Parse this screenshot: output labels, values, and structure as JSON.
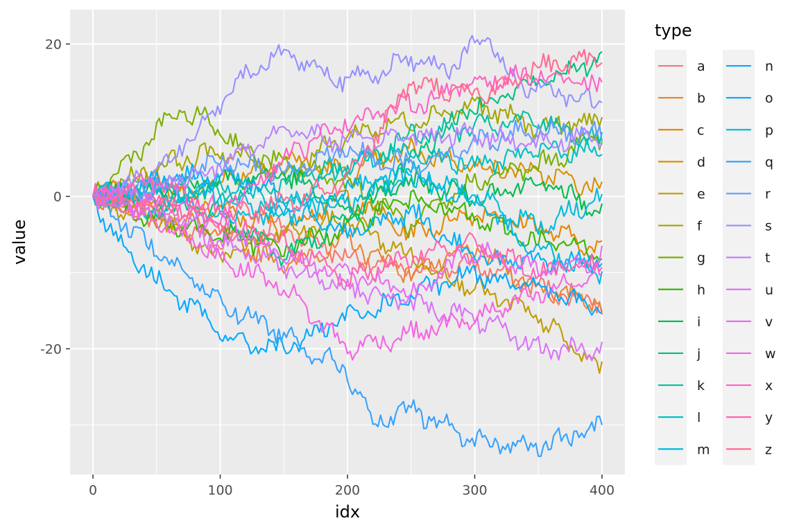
{
  "chart_data": {
    "type": "line",
    "xlabel": "idx",
    "ylabel": "value",
    "xlim": [
      -18,
      418
    ],
    "ylim": [
      -36.5,
      24.5
    ],
    "xticks": [
      0,
      100,
      200,
      300,
      400
    ],
    "xtick_labels": [
      "0",
      "100",
      "200",
      "300",
      "400"
    ],
    "yticks": [
      -20,
      0,
      20
    ],
    "ytick_labels": [
      "-20",
      "0",
      "20"
    ],
    "grid": true,
    "legend": {
      "title": "type",
      "placement": "right",
      "columns": 2
    },
    "series": [
      {
        "name": "a",
        "color": "#F8766D",
        "points": [
          [
            0,
            0
          ],
          [
            50,
            -3
          ],
          [
            100,
            -6
          ],
          [
            150,
            -4
          ],
          [
            200,
            -8
          ],
          [
            250,
            -10
          ],
          [
            300,
            -9
          ],
          [
            350,
            -12
          ],
          [
            400,
            -14
          ]
        ]
      },
      {
        "name": "b",
        "color": "#EA8331",
        "points": [
          [
            0,
            0
          ],
          [
            50,
            -2
          ],
          [
            100,
            -5
          ],
          [
            150,
            -9
          ],
          [
            200,
            -6
          ],
          [
            250,
            -10
          ],
          [
            300,
            -7
          ],
          [
            350,
            -12
          ],
          [
            400,
            -14
          ]
        ]
      },
      {
        "name": "c",
        "color": "#E58700",
        "points": [
          [
            0,
            0
          ],
          [
            50,
            2
          ],
          [
            100,
            -2
          ],
          [
            150,
            -4
          ],
          [
            200,
            0
          ],
          [
            250,
            -5
          ],
          [
            300,
            -2
          ],
          [
            350,
            -4
          ],
          [
            400,
            -7
          ]
        ]
      },
      {
        "name": "d",
        "color": "#D89000",
        "points": [
          [
            0,
            0
          ],
          [
            50,
            -1
          ],
          [
            100,
            2
          ],
          [
            150,
            5
          ],
          [
            200,
            3
          ],
          [
            250,
            6
          ],
          [
            300,
            4
          ],
          [
            350,
            3
          ],
          [
            400,
            1
          ]
        ]
      },
      {
        "name": "e",
        "color": "#C09B00",
        "points": [
          [
            0,
            0
          ],
          [
            50,
            -3
          ],
          [
            100,
            -8
          ],
          [
            150,
            -5
          ],
          [
            200,
            -3
          ],
          [
            250,
            -8
          ],
          [
            300,
            -12
          ],
          [
            350,
            -16
          ],
          [
            400,
            -23
          ]
        ]
      },
      {
        "name": "f",
        "color": "#A3A500",
        "points": [
          [
            0,
            0
          ],
          [
            50,
            4
          ],
          [
            100,
            6
          ],
          [
            150,
            3
          ],
          [
            200,
            8
          ],
          [
            250,
            10
          ],
          [
            300,
            12
          ],
          [
            350,
            9
          ],
          [
            400,
            10
          ]
        ]
      },
      {
        "name": "g",
        "color": "#7CAE00",
        "points": [
          [
            0,
            0
          ],
          [
            30,
            5
          ],
          [
            65,
            11
          ],
          [
            90,
            10
          ],
          [
            120,
            6
          ],
          [
            150,
            4
          ],
          [
            200,
            2
          ],
          [
            250,
            -4
          ],
          [
            300,
            2
          ],
          [
            350,
            4
          ],
          [
            400,
            8
          ]
        ]
      },
      {
        "name": "h",
        "color": "#39B600",
        "points": [
          [
            0,
            0
          ],
          [
            50,
            -3
          ],
          [
            100,
            -5
          ],
          [
            150,
            -7
          ],
          [
            200,
            -4
          ],
          [
            250,
            0
          ],
          [
            300,
            -3
          ],
          [
            350,
            -6
          ],
          [
            400,
            -7
          ]
        ]
      },
      {
        "name": "i",
        "color": "#00BB4E",
        "points": [
          [
            0,
            0
          ],
          [
            50,
            1
          ],
          [
            100,
            2
          ],
          [
            150,
            3
          ],
          [
            200,
            -2
          ],
          [
            250,
            2
          ],
          [
            300,
            0
          ],
          [
            350,
            2
          ],
          [
            400,
            -2
          ]
        ]
      },
      {
        "name": "j",
        "color": "#00BF7D",
        "points": [
          [
            0,
            0
          ],
          [
            50,
            -1
          ],
          [
            100,
            -2
          ],
          [
            150,
            -8
          ],
          [
            200,
            -3
          ],
          [
            250,
            5
          ],
          [
            300,
            12
          ],
          [
            350,
            15
          ],
          [
            400,
            18
          ]
        ]
      },
      {
        "name": "k",
        "color": "#00C1A3",
        "points": [
          [
            0,
            0
          ],
          [
            50,
            2
          ],
          [
            100,
            0
          ],
          [
            150,
            2
          ],
          [
            200,
            4
          ],
          [
            250,
            8
          ],
          [
            300,
            9
          ],
          [
            350,
            10
          ],
          [
            400,
            7
          ]
        ]
      },
      {
        "name": "l",
        "color": "#00BFC4",
        "points": [
          [
            0,
            0
          ],
          [
            50,
            -2
          ],
          [
            100,
            2
          ],
          [
            150,
            -1
          ],
          [
            200,
            4
          ],
          [
            250,
            6
          ],
          [
            300,
            4
          ],
          [
            350,
            6
          ],
          [
            400,
            6
          ]
        ]
      },
      {
        "name": "m",
        "color": "#00B9E3",
        "points": [
          [
            0,
            0
          ],
          [
            50,
            1
          ],
          [
            100,
            0
          ],
          [
            150,
            -3
          ],
          [
            200,
            1
          ],
          [
            250,
            3
          ],
          [
            300,
            -1
          ],
          [
            350,
            -7
          ],
          [
            400,
            -10
          ]
        ]
      },
      {
        "name": "n",
        "color": "#00A9FF",
        "points": [
          [
            0,
            0
          ],
          [
            20,
            -6
          ],
          [
            50,
            -11
          ],
          [
            80,
            -15
          ],
          [
            110,
            -19
          ],
          [
            150,
            -20
          ],
          [
            200,
            -16
          ],
          [
            250,
            -13
          ],
          [
            300,
            -10
          ],
          [
            350,
            -12
          ],
          [
            400,
            -15
          ]
        ]
      },
      {
        "name": "o",
        "color": "#00B0F6",
        "points": [
          [
            0,
            0
          ],
          [
            50,
            2
          ],
          [
            100,
            3
          ],
          [
            150,
            0
          ],
          [
            200,
            -5
          ],
          [
            250,
            -2
          ],
          [
            300,
            -8
          ],
          [
            350,
            -9
          ],
          [
            400,
            -8
          ]
        ]
      },
      {
        "name": "p",
        "color": "#00BCD8",
        "points": [
          [
            0,
            0
          ],
          [
            50,
            1
          ],
          [
            100,
            -3
          ],
          [
            150,
            -1
          ],
          [
            200,
            -1
          ],
          [
            250,
            3
          ],
          [
            300,
            0
          ],
          [
            350,
            -4
          ],
          [
            400,
            0
          ]
        ]
      },
      {
        "name": "q",
        "color": "#35A2FF",
        "points": [
          [
            0,
            0
          ],
          [
            20,
            -3
          ],
          [
            50,
            -7
          ],
          [
            100,
            -14
          ],
          [
            150,
            -18
          ],
          [
            200,
            -23
          ],
          [
            220,
            -30
          ],
          [
            250,
            -28
          ],
          [
            300,
            -32
          ],
          [
            350,
            -33
          ],
          [
            400,
            -30
          ]
        ]
      },
      {
        "name": "r",
        "color": "#619CFF",
        "points": [
          [
            0,
            0
          ],
          [
            50,
            1
          ],
          [
            100,
            5
          ],
          [
            150,
            3
          ],
          [
            200,
            6
          ],
          [
            250,
            4
          ],
          [
            300,
            7
          ],
          [
            350,
            9
          ],
          [
            400,
            8
          ]
        ]
      },
      {
        "name": "s",
        "color": "#9590FF",
        "points": [
          [
            0,
            0
          ],
          [
            50,
            3
          ],
          [
            90,
            10
          ],
          [
            120,
            16
          ],
          [
            150,
            19
          ],
          [
            200,
            15
          ],
          [
            250,
            18
          ],
          [
            280,
            17
          ],
          [
            310,
            21
          ],
          [
            330,
            15
          ],
          [
            360,
            14
          ],
          [
            400,
            12
          ]
        ]
      },
      {
        "name": "t",
        "color": "#B983FF",
        "points": [
          [
            0,
            0
          ],
          [
            50,
            1
          ],
          [
            100,
            4
          ],
          [
            150,
            9
          ],
          [
            200,
            7
          ],
          [
            250,
            8
          ],
          [
            300,
            8
          ],
          [
            350,
            7
          ],
          [
            400,
            8
          ]
        ]
      },
      {
        "name": "u",
        "color": "#DB72FB",
        "points": [
          [
            0,
            0
          ],
          [
            50,
            -2
          ],
          [
            100,
            -6
          ],
          [
            150,
            -9
          ],
          [
            200,
            -12
          ],
          [
            250,
            -14
          ],
          [
            300,
            -16
          ],
          [
            350,
            -20
          ],
          [
            400,
            -20
          ]
        ]
      },
      {
        "name": "v",
        "color": "#E76BF3",
        "points": [
          [
            0,
            0
          ],
          [
            50,
            -1
          ],
          [
            100,
            -3
          ],
          [
            150,
            -8
          ],
          [
            200,
            -10
          ],
          [
            250,
            -13
          ],
          [
            300,
            -7
          ],
          [
            350,
            -10
          ],
          [
            400,
            -8
          ]
        ]
      },
      {
        "name": "w",
        "color": "#F564E3",
        "points": [
          [
            0,
            0
          ],
          [
            50,
            -3
          ],
          [
            100,
            -8
          ],
          [
            150,
            -12
          ],
          [
            200,
            -20
          ],
          [
            250,
            -18
          ],
          [
            300,
            -16
          ],
          [
            350,
            -13
          ],
          [
            400,
            -10
          ]
        ]
      },
      {
        "name": "x",
        "color": "#FF61C3",
        "points": [
          [
            0,
            0
          ],
          [
            50,
            2
          ],
          [
            100,
            -2
          ],
          [
            150,
            5
          ],
          [
            200,
            10
          ],
          [
            250,
            12
          ],
          [
            300,
            15
          ],
          [
            350,
            16
          ],
          [
            400,
            14
          ]
        ]
      },
      {
        "name": "y",
        "color": "#FF64B0",
        "points": [
          [
            0,
            0
          ],
          [
            50,
            0
          ],
          [
            100,
            -4
          ],
          [
            150,
            -6
          ],
          [
            200,
            -11
          ],
          [
            250,
            -8
          ],
          [
            300,
            -6
          ],
          [
            350,
            -10
          ],
          [
            400,
            -9
          ]
        ]
      },
      {
        "name": "z",
        "color": "#FF6C91",
        "points": [
          [
            0,
            0
          ],
          [
            50,
            -1
          ],
          [
            100,
            -3
          ],
          [
            150,
            -1
          ],
          [
            200,
            2
          ],
          [
            250,
            15
          ],
          [
            300,
            13
          ],
          [
            350,
            17
          ],
          [
            400,
            18
          ]
        ]
      }
    ]
  }
}
